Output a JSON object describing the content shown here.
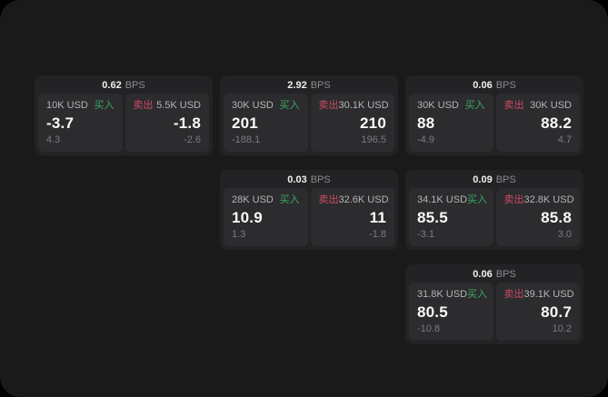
{
  "theme": {
    "background": "#000000",
    "panel_bg": "#1a1a1b",
    "card_bg": "#232325",
    "tile_bg": "#2c2c2e",
    "text_primary": "#f0f0f0",
    "text_secondary": "#b5b5b8",
    "text_muted": "#8b8b8e",
    "text_dim": "#7c7c80",
    "buy_color": "#3ea864",
    "sell_color": "#cf4a63"
  },
  "labels": {
    "bps_unit": "BPS",
    "buy": "买入",
    "sell": "卖出"
  },
  "cards": [
    {
      "bps": "0.62",
      "row": 1,
      "col": 1,
      "buy": {
        "amount": "10K USD",
        "value": "-3.7",
        "delta": "4.3"
      },
      "sell": {
        "amount": "5.5K USD",
        "value": "-1.8",
        "delta": "-2.6"
      }
    },
    {
      "bps": "2.92",
      "row": 1,
      "col": 2,
      "buy": {
        "amount": "30K USD",
        "value": "201",
        "delta": "-188.1"
      },
      "sell": {
        "amount": "30.1K USD",
        "value": "210",
        "delta": "196.5"
      }
    },
    {
      "bps": "0.06",
      "row": 1,
      "col": 3,
      "buy": {
        "amount": "30K USD",
        "value": "88",
        "delta": "-4.9"
      },
      "sell": {
        "amount": "30K USD",
        "value": "88.2",
        "delta": "4.7"
      }
    },
    {
      "bps": "0.03",
      "row": 2,
      "col": 2,
      "buy": {
        "amount": "28K USD",
        "value": "10.9",
        "delta": "1.3"
      },
      "sell": {
        "amount": "32.6K USD",
        "value": "11",
        "delta": "-1.8"
      }
    },
    {
      "bps": "0.09",
      "row": 2,
      "col": 3,
      "buy": {
        "amount": "34.1K USD",
        "value": "85.5",
        "delta": "-3.1"
      },
      "sell": {
        "amount": "32.8K USD",
        "value": "85.8",
        "delta": "3.0"
      }
    },
    {
      "bps": "0.06",
      "row": 3,
      "col": 3,
      "buy": {
        "amount": "31.8K USD",
        "value": "80.5",
        "delta": "-10.8"
      },
      "sell": {
        "amount": "39.1K USD",
        "value": "80.7",
        "delta": "10.2"
      }
    }
  ]
}
